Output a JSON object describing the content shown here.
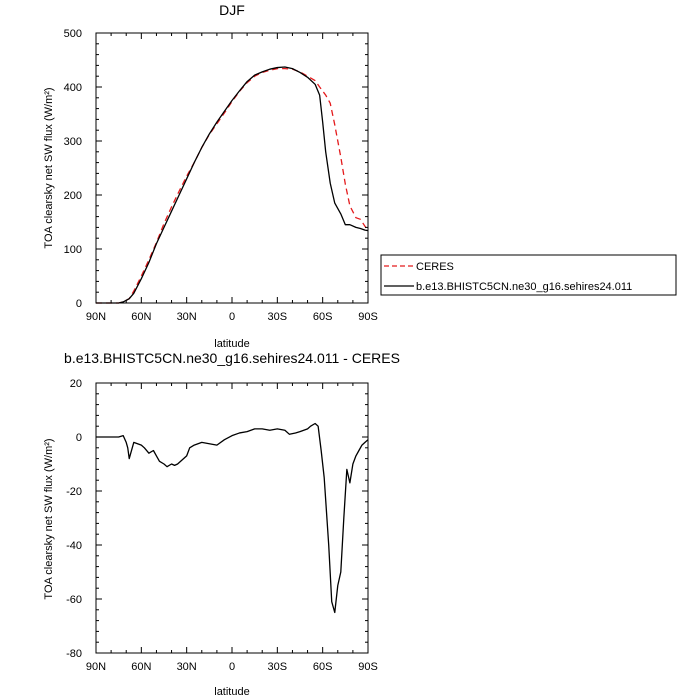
{
  "chart_data": [
    {
      "type": "line",
      "title": "DJF",
      "xlabel": "latitude",
      "ylabel": "TOA clearsky net SW flux (W/m²)",
      "xlim": [
        -90,
        90
      ],
      "ylim": [
        0,
        500
      ],
      "xticks": [
        -90,
        -60,
        -30,
        0,
        30,
        60,
        90
      ],
      "xtick_labels": [
        "90N",
        "60N",
        "30N",
        "0",
        "30S",
        "60S",
        "90S"
      ],
      "yticks": [
        0,
        100,
        200,
        300,
        400,
        500
      ],
      "ytick_labels": [
        "0",
        "100",
        "200",
        "300",
        "400",
        "500"
      ],
      "legend_position": "right",
      "series": [
        {
          "name": "CERES",
          "color": "#e41a1c",
          "dash": "dashed",
          "x": [
            -90,
            -80,
            -75,
            -72,
            -68,
            -65,
            -60,
            -55,
            -50,
            -45,
            -40,
            -35,
            -30,
            -25,
            -20,
            -15,
            -10,
            -5,
            0,
            5,
            10,
            15,
            20,
            25,
            30,
            35,
            40,
            45,
            50,
            55,
            58,
            62,
            65,
            68,
            72,
            75,
            78,
            82,
            85,
            88,
            90
          ],
          "y": [
            0,
            0,
            0,
            2,
            8,
            22,
            50,
            80,
            112,
            147,
            178,
            207,
            235,
            260,
            288,
            312,
            332,
            352,
            373,
            392,
            408,
            420,
            427,
            431,
            434,
            434,
            433,
            428,
            420,
            412,
            400,
            385,
            370,
            330,
            270,
            220,
            180,
            158,
            155,
            142,
            135
          ]
        },
        {
          "name": "b.e13.BHISTC5CN.ne30_g16.sehires24.011",
          "color": "#000000",
          "dash": "solid",
          "x": [
            -90,
            -80,
            -75,
            -72,
            -68,
            -65,
            -60,
            -55,
            -50,
            -45,
            -40,
            -35,
            -30,
            -25,
            -20,
            -15,
            -10,
            -5,
            0,
            5,
            10,
            15,
            20,
            25,
            30,
            35,
            40,
            45,
            50,
            55,
            58,
            60,
            62,
            65,
            68,
            72,
            75,
            78,
            82,
            85,
            88,
            90
          ],
          "y": [
            0,
            0,
            0,
            2,
            8,
            18,
            45,
            75,
            110,
            140,
            170,
            200,
            230,
            260,
            288,
            313,
            335,
            355,
            375,
            393,
            410,
            422,
            428,
            433,
            436,
            437,
            434,
            427,
            418,
            405,
            385,
            335,
            280,
            222,
            185,
            165,
            145,
            145,
            140,
            138,
            135,
            134
          ]
        }
      ]
    },
    {
      "type": "line",
      "title": "b.e13.BHISTC5CN.ne30_g16.sehires24.011 - CERES",
      "xlabel": "latitude",
      "ylabel": "TOA clearsky net SW flux (W/m²)",
      "xlim": [
        -90,
        90
      ],
      "ylim": [
        -80,
        20
      ],
      "xticks": [
        -90,
        -60,
        -30,
        0,
        30,
        60,
        90
      ],
      "xtick_labels": [
        "90N",
        "60N",
        "30N",
        "0",
        "30S",
        "60S",
        "90S"
      ],
      "yticks": [
        -80,
        -60,
        -40,
        -20,
        0,
        20
      ],
      "ytick_labels": [
        "-80",
        "-60",
        "-40",
        "-20",
        "0",
        "20"
      ],
      "series": [
        {
          "name": "",
          "color": "#000000",
          "dash": "solid",
          "x": [
            -90,
            -75,
            -72,
            -70,
            -69,
            -68,
            -65,
            -60,
            -58,
            -55,
            -52,
            -50,
            -48,
            -45,
            -43,
            -40,
            -38,
            -36,
            -35,
            -30,
            -28,
            -25,
            -20,
            -15,
            -10,
            -5,
            0,
            5,
            10,
            15,
            20,
            25,
            30,
            35,
            38,
            42,
            45,
            50,
            52,
            55,
            57,
            59,
            61,
            64,
            66,
            68,
            70,
            72,
            74,
            76,
            78,
            80,
            82,
            84,
            86,
            88,
            90
          ],
          "y": [
            0,
            0,
            0.5,
            -2,
            -4,
            -8,
            -2,
            -3,
            -4,
            -6,
            -5,
            -7,
            -9,
            -10,
            -11,
            -10,
            -10.5,
            -10,
            -9.5,
            -7,
            -4,
            -3,
            -2,
            -2.5,
            -3,
            -1,
            0.5,
            1.5,
            2,
            3,
            3,
            2.5,
            3,
            2.5,
            1,
            1.5,
            2,
            3,
            4,
            5,
            4,
            -5,
            -15,
            -40,
            -61,
            -65,
            -55,
            -50,
            -30,
            -12,
            -17,
            -10,
            -7,
            -5,
            -3,
            -2,
            -1
          ]
        }
      ]
    }
  ]
}
